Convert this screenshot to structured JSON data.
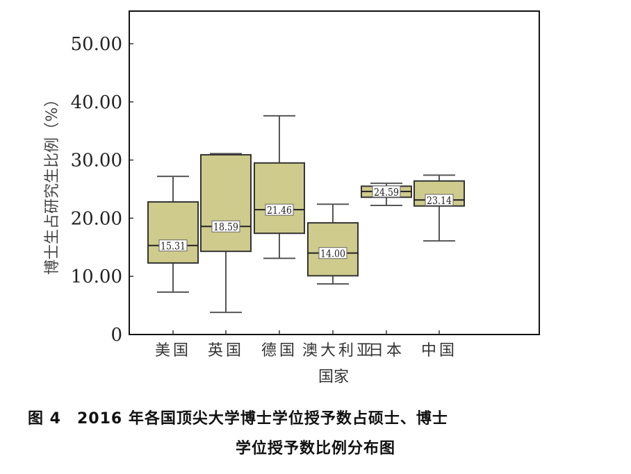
{
  "chart_data": {
    "type": "boxplot",
    "title": "",
    "xlabel": "国家",
    "ylabel": "博士生占研究生比例（%）",
    "ylim": [
      0,
      55
    ],
    "yticks": [
      0,
      10,
      20,
      30,
      40,
      50
    ],
    "ytick_labels": [
      "0",
      "10.00",
      "20.00",
      "30.00",
      "40.00",
      "50.00"
    ],
    "grid": false,
    "legend": null,
    "categories": [
      "美国",
      "英国",
      "德国",
      "澳大利亚",
      "日本",
      "中国"
    ],
    "boxes": [
      {
        "category": "美国",
        "min": 7.3,
        "q1": 12.3,
        "median": 15.31,
        "q3": 22.8,
        "max": 27.2,
        "label": "15.31"
      },
      {
        "category": "英国",
        "min": 3.8,
        "q1": 14.3,
        "median": 18.59,
        "q3": 30.9,
        "max": 31.1,
        "label": "18.59"
      },
      {
        "category": "德国",
        "min": 13.1,
        "q1": 17.4,
        "median": 21.46,
        "q3": 29.5,
        "max": 37.6,
        "label": "21.46"
      },
      {
        "category": "澳大利亚",
        "min": 8.7,
        "q1": 10.1,
        "median": 14.0,
        "q3": 19.2,
        "max": 22.4,
        "label": "14.00"
      },
      {
        "category": "日本",
        "min": 22.2,
        "q1": 23.6,
        "median": 24.59,
        "q3": 25.5,
        "max": 26.0,
        "label": "24.59"
      },
      {
        "category": "中国",
        "min": 16.1,
        "q1": 22.1,
        "median": 23.14,
        "q3": 26.4,
        "max": 27.4,
        "label": "23.14"
      }
    ],
    "colors": {
      "box_fill": "#cfcb8c",
      "box_stroke": "#333333",
      "axis": "#111111"
    }
  },
  "caption": {
    "line1": "图 4　2016 年各国顶尖大学博士学位授予数占硕士、博士",
    "line2": "学位授予数比例分布图"
  }
}
